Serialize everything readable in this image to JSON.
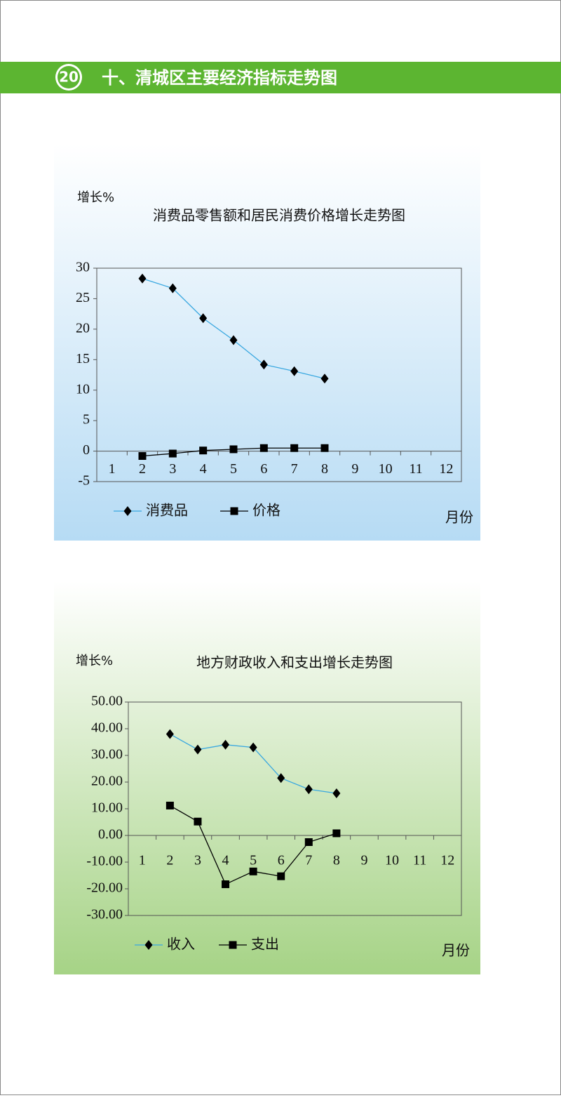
{
  "header": {
    "number": "20",
    "title": "十、清城区主要经济指标走势图"
  },
  "chart_data": [
    {
      "type": "line",
      "title": "消费品零售额和居民消费价格增长走势图",
      "y_label": "增长%",
      "x_label": "月份",
      "categories": [
        "1",
        "2",
        "3",
        "4",
        "5",
        "6",
        "7",
        "8",
        "9",
        "10",
        "11",
        "12"
      ],
      "series": [
        {
          "name": "消费品",
          "color": "#3aa8e0",
          "marker": "diamond",
          "values": [
            null,
            28.3,
            26.7,
            21.8,
            18.2,
            14.2,
            13.1,
            11.9,
            null,
            null,
            null,
            null
          ]
        },
        {
          "name": "价格",
          "color": "#000000",
          "marker": "square",
          "values": [
            null,
            -0.8,
            -0.4,
            0.1,
            0.3,
            0.5,
            0.5,
            0.5,
            null,
            null,
            null,
            null
          ]
        }
      ],
      "ylim": [
        -5,
        30
      ],
      "yticks": [
        -5,
        0,
        5,
        10,
        15,
        20,
        25,
        30
      ],
      "grid": false
    },
    {
      "type": "line",
      "title": "地方财政收入和支出增长走势图",
      "y_label": "增长%",
      "x_label": "月份",
      "categories": [
        "1",
        "2",
        "3",
        "4",
        "5",
        "6",
        "7",
        "8",
        "9",
        "10",
        "11",
        "12"
      ],
      "series": [
        {
          "name": "收入",
          "color": "#3aa8e0",
          "marker": "diamond",
          "values": [
            null,
            38.0,
            32.2,
            34.0,
            33.0,
            21.5,
            17.3,
            15.8,
            null,
            null,
            null,
            null
          ]
        },
        {
          "name": "支出",
          "color": "#000000",
          "marker": "square",
          "values": [
            null,
            11.2,
            5.2,
            -18.3,
            -13.5,
            -15.3,
            -2.5,
            0.8,
            null,
            null,
            null,
            null
          ]
        }
      ],
      "ylim": [
        -30,
        50
      ],
      "yticks": [
        {
          "value": -30,
          "label": "-30.00"
        },
        {
          "value": -20,
          "label": "-20.00"
        },
        {
          "value": -10,
          "label": "-10.00"
        },
        {
          "value": 0,
          "label": "0.00"
        },
        {
          "value": 10,
          "label": "10.00"
        },
        {
          "value": 20,
          "label": "20.00"
        },
        {
          "value": 30,
          "label": "30.00"
        },
        {
          "value": 40,
          "label": "40.00"
        },
        {
          "value": 50,
          "label": "50.00"
        }
      ],
      "grid": false
    }
  ]
}
